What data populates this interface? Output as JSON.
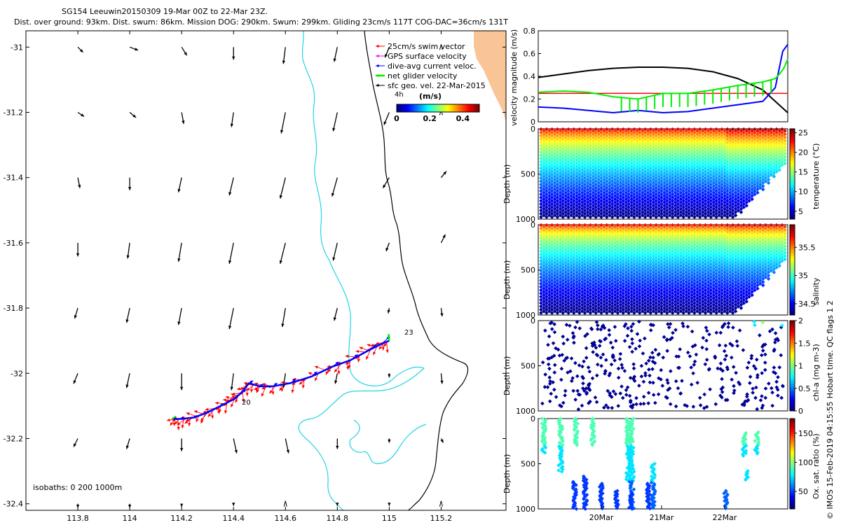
{
  "header": {
    "title": "SG154 Leeuwin20150309 19-Mar 00Z to 22-Mar 23Z.",
    "subtitle": "Dist. over ground: 93km. Dist. swum: 86km. Mission DOG: 290km. Swum: 299km. Gliding 23cm/s 117T COG-DAC=36cm/s 131T"
  },
  "colors": {
    "land": "#f9c496",
    "isobath_200": "#22d3e6",
    "isobath_1000": "#000000",
    "swim_vector": "#ff0000",
    "gps_surface": "#ff00ff",
    "dive_avg": "#0000ff",
    "net_glider": "#00ee00",
    "sfc_geo": "#000000"
  },
  "map": {
    "legend": {
      "items": [
        {
          "label": "25cm/s swim vector",
          "color": "#ff0000"
        },
        {
          "label": "GPS surface velocity",
          "color": "#ff00ff"
        },
        {
          "label": "dive-avg current veloc.",
          "color": "#0000ff"
        },
        {
          "label": "net glider velocity",
          "color": "#00ee00"
        },
        {
          "label": "sfc geo. vel. 22-Mar-2015",
          "color": "#000000"
        }
      ]
    },
    "colorbar": {
      "title": "(m/s)",
      "ticks": [
        "0",
        "0.2",
        "0.4"
      ],
      "range": [
        0,
        0.5
      ]
    },
    "isobaths_label": "isobaths: 0   200   1000m",
    "scale_label": "4h",
    "start_label": "20",
    "end_label": "23"
  },
  "chart_data": [
    {
      "type": "scatter",
      "name": "glider-track-map",
      "xlim": [
        113.6,
        115.45
      ],
      "ylim": [
        -32.42,
        -30.95
      ],
      "xticks": [
        113.8,
        114,
        114.2,
        114.4,
        114.6,
        114.8,
        115,
        115.2
      ],
      "yticks": [
        -31,
        -31.2,
        -31.4,
        -31.6,
        -31.8,
        -32,
        -32.2,
        -32.4
      ],
      "xtick_labels": [
        "113.8",
        "114",
        "114.2",
        "114.4",
        "114.6",
        "114.8",
        "115",
        "115.2"
      ],
      "ytick_labels": [
        "-31",
        "-31.2",
        "-31.4",
        "-31.6",
        "-31.8",
        "-32",
        "-32.2",
        "-32.4"
      ],
      "track": {
        "lon": [
          114.17,
          114.2,
          114.25,
          114.3,
          114.35,
          114.4,
          114.43,
          114.46,
          114.5,
          114.55,
          114.62,
          114.7,
          114.78,
          114.85,
          114.92,
          114.97,
          115.0
        ],
        "lat": [
          -32.14,
          -32.14,
          -32.135,
          -32.12,
          -32.1,
          -32.08,
          -32.06,
          -32.03,
          -32.04,
          -32.04,
          -32.03,
          -32.01,
          -31.98,
          -31.96,
          -31.93,
          -31.91,
          -31.9
        ]
      },
      "dive_avg_vectors": {
        "u": [
          0.04,
          0.03,
          0.05,
          0.06,
          0.08,
          0.1,
          0.12,
          0.1,
          0.1,
          0.12,
          0.12,
          0.14,
          0.16,
          0.18,
          0.2,
          0.2
        ],
        "v": [
          0.05,
          0.06,
          0.05,
          0.05,
          0.06,
          0.07,
          0.08,
          0.06,
          0.05,
          0.08,
          0.1,
          0.12,
          0.12,
          0.14,
          0.15,
          0.18
        ]
      },
      "net_glider_vector": {
        "lon": 115.0,
        "lat": -31.9,
        "u": -0.01,
        "v": 0.12
      },
      "geo_velocity_grid": {
        "lons": [
          113.8,
          114,
          114.2,
          114.4,
          114.6,
          114.8,
          115,
          115.2
        ],
        "lats": [
          -31,
          -31.2,
          -31.4,
          -31.6,
          -31.8,
          -32,
          -32.2,
          -32.4
        ],
        "u": [
          [
            0.05,
            0.08,
            0.05,
            0.0,
            -0.02,
            -0.03,
            -0.04,
            0.0
          ],
          [
            0.06,
            0.06,
            0.02,
            -0.02,
            -0.04,
            -0.04,
            -0.05,
            0.0
          ],
          [
            0.02,
            0.0,
            -0.03,
            -0.04,
            -0.05,
            -0.05,
            -0.06,
            0.05
          ],
          [
            0.0,
            -0.02,
            -0.03,
            -0.04,
            -0.05,
            -0.04,
            -0.03,
            0.04
          ],
          [
            -0.03,
            -0.03,
            -0.03,
            -0.04,
            -0.03,
            -0.03,
            -0.01,
            0.01
          ],
          [
            -0.04,
            -0.03,
            0.0,
            -0.02,
            -0.02,
            -0.02,
            0.0,
            0.01
          ],
          [
            -0.04,
            -0.03,
            0.0,
            0.03,
            0.03,
            0.0,
            0.0,
            0.02
          ],
          [
            0.0,
            0.0,
            0.0,
            0.0,
            0.0,
            0.0,
            0.0,
            0.0
          ]
        ],
        "v": [
          [
            -0.05,
            -0.03,
            -0.08,
            -0.12,
            -0.16,
            -0.14,
            -0.1,
            0.0
          ],
          [
            -0.04,
            -0.05,
            -0.11,
            -0.14,
            -0.2,
            -0.18,
            -0.12,
            0.0
          ],
          [
            -0.1,
            -0.12,
            -0.14,
            -0.17,
            -0.2,
            -0.18,
            -0.1,
            0.06
          ],
          [
            -0.13,
            -0.15,
            -0.18,
            -0.2,
            -0.2,
            -0.17,
            -0.08,
            0.08
          ],
          [
            -0.1,
            -0.14,
            -0.16,
            -0.2,
            -0.18,
            -0.12,
            -0.05,
            -0.08
          ],
          [
            -0.1,
            -0.14,
            -0.16,
            -0.16,
            -0.14,
            -0.1,
            -0.04,
            -0.1
          ],
          [
            -0.08,
            -0.1,
            -0.12,
            -0.14,
            -0.14,
            -0.1,
            -0.04,
            -0.04
          ],
          [
            -0.04,
            -0.04,
            -0.03,
            -0.02,
            0.0,
            -0.02,
            -0.02,
            0.0
          ]
        ]
      }
    },
    {
      "type": "line",
      "name": "velocity-magnitude",
      "ylabel": "velocity magnitude (m/s)",
      "ylim": [
        0,
        0.8
      ],
      "yticks": [
        0,
        0.2,
        0.4,
        0.6,
        0.8
      ],
      "ytick_labels": [
        "0",
        "0.2",
        "0.4",
        "0.6",
        "0.8"
      ],
      "xlim": [
        0,
        1
      ],
      "series": [
        {
          "name": "sfc geo. vel.",
          "color": "#000000",
          "x": [
            0,
            0.1,
            0.2,
            0.3,
            0.4,
            0.5,
            0.6,
            0.7,
            0.8,
            0.9,
            0.95,
            1.0
          ],
          "values": [
            0.39,
            0.42,
            0.45,
            0.47,
            0.48,
            0.48,
            0.47,
            0.44,
            0.38,
            0.28,
            0.18,
            0.08
          ]
        },
        {
          "name": "25cm/s swim",
          "color": "#ff0000",
          "x": [
            0,
            1
          ],
          "values": [
            0.25,
            0.25
          ]
        },
        {
          "name": "dive-avg current",
          "color": "#0000ff",
          "x": [
            0,
            0.1,
            0.2,
            0.3,
            0.4,
            0.5,
            0.6,
            0.7,
            0.8,
            0.9,
            0.95,
            0.98,
            1.0
          ],
          "values": [
            0.13,
            0.12,
            0.1,
            0.08,
            0.1,
            0.08,
            0.09,
            0.12,
            0.15,
            0.18,
            0.3,
            0.62,
            0.68
          ]
        },
        {
          "name": "net glider",
          "color": "#00ee00",
          "x": [
            0,
            0.1,
            0.2,
            0.3,
            0.4,
            0.5,
            0.6,
            0.7,
            0.8,
            0.9,
            0.95,
            0.98,
            1.0
          ],
          "values": [
            0.26,
            0.27,
            0.26,
            0.22,
            0.2,
            0.25,
            0.25,
            0.28,
            0.32,
            0.35,
            0.38,
            0.45,
            0.55
          ]
        }
      ]
    },
    {
      "type": "scatter",
      "name": "temperature-section",
      "ylabel": "Depth (m)",
      "clabel": "temperature (°C)",
      "ylim": [
        1000,
        0
      ],
      "yticks": [
        0,
        500,
        1000
      ],
      "clim": [
        3,
        26
      ],
      "cticks": [
        "5",
        "10",
        "15",
        "20",
        "25"
      ],
      "profiles": 45
    },
    {
      "type": "scatter",
      "name": "salinity-section",
      "ylabel": "Depth (m)",
      "clabel": "salinity",
      "ylim": [
        1000,
        0
      ],
      "yticks": [
        0,
        500,
        1000
      ],
      "clim": [
        34.3,
        35.9
      ],
      "cticks": [
        "34.5",
        "35",
        "35.5"
      ],
      "profiles": 45
    },
    {
      "type": "scatter",
      "name": "chla-section",
      "ylabel": "Depth (m)",
      "clabel": "chl-a (mg m-3)",
      "ylim": [
        1000,
        0
      ],
      "yticks": [
        0,
        500,
        1000
      ],
      "clim": [
        0,
        2
      ],
      "cticks": [
        "0",
        "0.5",
        "1",
        "1.5",
        "2"
      ]
    },
    {
      "type": "scatter",
      "name": "oxygen-section",
      "ylabel": "Depth (m)",
      "clabel": "Ox. sat. ratio (%)",
      "ylim": [
        1000,
        0
      ],
      "yticks": [
        0,
        500,
        1000
      ],
      "clim": [
        20,
        175
      ],
      "cticks": [
        "50",
        "100",
        "150"
      ],
      "xtick_labels": [
        "20Mar",
        "21Mar",
        "22Mar"
      ]
    }
  ],
  "footer": {
    "qc_label": "Hobart time. QC flags 1  2",
    "credit": "© IMOS 15-Feb-2019 04:15:55"
  }
}
